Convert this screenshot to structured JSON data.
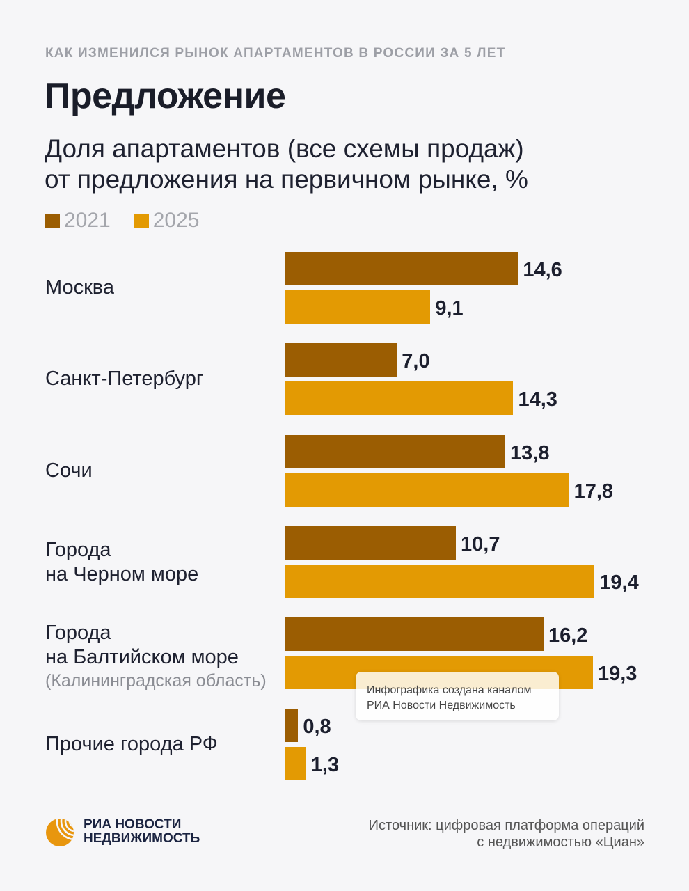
{
  "header": {
    "kicker": "КАК ИЗМЕНИЛСЯ РЫНОК АПАРТАМЕНТОВ В РОССИИ ЗА 5 ЛЕТ",
    "title": "Предложение",
    "subtitle_line1": "Доля апартаментов (все схемы продаж)",
    "subtitle_line2": "от предложения на первичном рынке, %"
  },
  "colors": {
    "s2021": "#9b5d02",
    "s2025": "#e39a03"
  },
  "chart_data": {
    "type": "bar",
    "orientation": "horizontal",
    "title": "Доля апартаментов (все схемы продаж) от предложения на первичном рынке, %",
    "categories": [
      {
        "main": "Москва",
        "main2": "",
        "sub": ""
      },
      {
        "main": "Санкт-Петербург",
        "main2": "",
        "sub": ""
      },
      {
        "main": "Сочи",
        "main2": "",
        "sub": ""
      },
      {
        "main": "Города",
        "main2": "на Черном море",
        "sub": ""
      },
      {
        "main": "Города",
        "main2": "на Балтийском море",
        "sub": "(Калининградская область)"
      },
      {
        "main": "Прочие города РФ",
        "main2": "",
        "sub": ""
      }
    ],
    "series": [
      {
        "name": "2021",
        "values": [
          14.6,
          7.0,
          13.8,
          10.7,
          16.2,
          0.8
        ],
        "labels": [
          "14,6",
          "7,0",
          "13,8",
          "10,7",
          "16,2",
          "0,8"
        ]
      },
      {
        "name": "2025",
        "values": [
          9.1,
          14.3,
          17.8,
          19.4,
          19.3,
          1.3
        ],
        "labels": [
          "9,1",
          "14,3",
          "17,8",
          "19,4",
          "19,3",
          "1,3"
        ]
      }
    ],
    "legend": "top-left",
    "grid": false,
    "xlim": [
      0,
      20
    ]
  },
  "watermark": {
    "line1": "Инфографика создана каналом",
    "line2": "РИА Новости Недвижимость"
  },
  "footer": {
    "logo_line1": "РИА НОВОСТИ",
    "logo_line2": "НЕДВИЖИМОСТЬ",
    "source_line1": "Источник: цифровая платформа операций",
    "source_line2": "с недвижимостью «Циан»"
  }
}
